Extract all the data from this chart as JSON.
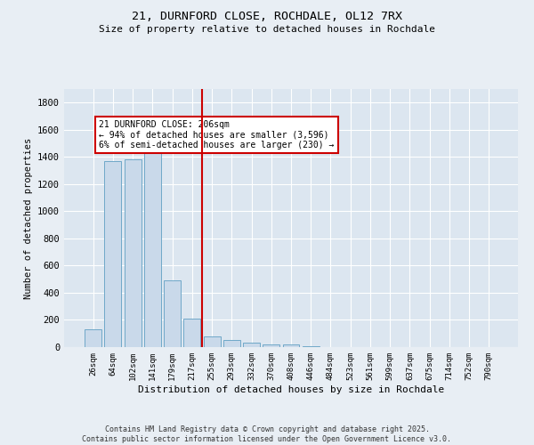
{
  "title_line1": "21, DURNFORD CLOSE, ROCHDALE, OL12 7RX",
  "title_line2": "Size of property relative to detached houses in Rochdale",
  "xlabel": "Distribution of detached houses by size in Rochdale",
  "ylabel": "Number of detached properties",
  "categories": [
    "26sqm",
    "64sqm",
    "102sqm",
    "141sqm",
    "179sqm",
    "217sqm",
    "255sqm",
    "293sqm",
    "332sqm",
    "370sqm",
    "408sqm",
    "446sqm",
    "484sqm",
    "523sqm",
    "561sqm",
    "599sqm",
    "637sqm",
    "675sqm",
    "714sqm",
    "752sqm",
    "790sqm"
  ],
  "values": [
    130,
    1370,
    1380,
    1430,
    490,
    210,
    80,
    55,
    30,
    20,
    20,
    5,
    2,
    1,
    0,
    0,
    0,
    0,
    0,
    0,
    0
  ],
  "bar_color": "#c9d9ea",
  "bar_edge_color": "#6fa8c8",
  "vline_x_index": 5.5,
  "vline_color": "#cc0000",
  "annotation_text": "21 DURNFORD CLOSE: 206sqm\n← 94% of detached houses are smaller (3,596)\n6% of semi-detached houses are larger (230) →",
  "annotation_box_color": "#cc0000",
  "annotation_text_color": "#000000",
  "ylim": [
    0,
    1900
  ],
  "yticks": [
    0,
    200,
    400,
    600,
    800,
    1000,
    1200,
    1400,
    1600,
    1800
  ],
  "bg_color": "#e8eef4",
  "plot_bg_color": "#dce6f0",
  "grid_color": "#ffffff",
  "footer_line1": "Contains HM Land Registry data © Crown copyright and database right 2025.",
  "footer_line2": "Contains public sector information licensed under the Open Government Licence v3.0."
}
